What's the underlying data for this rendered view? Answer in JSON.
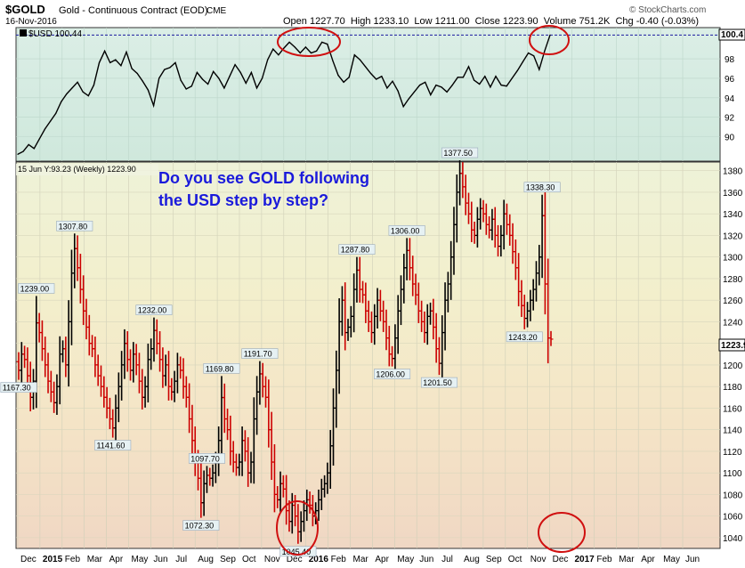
{
  "header": {
    "symbol": "$GOLD",
    "name": "Gold - Continuous Contract (EOD)",
    "exchange": "CME",
    "date": "16-Nov-2016",
    "ohlc_line": "Open 1227.70  High 1233.10  Low 1211.00  Close 1223.90  Volume 751.2K  Chg -0.40 (-0.03%)",
    "watermark": "© StockCharts.com"
  },
  "annotation": {
    "line1": "Do you see GOLD following",
    "line2": "the USD step by step?"
  },
  "colors": {
    "up_bar": "#000000",
    "down_bar": "#cc0000",
    "usd_line": "#000000",
    "annotation_text": "#1a1adb",
    "circle": "#d01010",
    "dashed_line": "#1a1aa0"
  },
  "chart_data": [
    {
      "type": "line",
      "legend": "$USD 100.44",
      "last_value_tag": "100.4",
      "ylim": [
        87.5,
        101.2
      ],
      "yticks": [
        90,
        92,
        94,
        96,
        98
      ],
      "reference_line": 100.44,
      "x": [
        0,
        1,
        2,
        3,
        4,
        5,
        6,
        7,
        8,
        9,
        10,
        11,
        12,
        13,
        14,
        15,
        16,
        17,
        18,
        19,
        20,
        21,
        22,
        23,
        24,
        25,
        26,
        27,
        28,
        29,
        30,
        31,
        32,
        33,
        34,
        35,
        36,
        37,
        38,
        39,
        40,
        41,
        42,
        43,
        44,
        45,
        46,
        47,
        48,
        49,
        50,
        51,
        52,
        53,
        54,
        55,
        56,
        57,
        58,
        59,
        60,
        61,
        62,
        63,
        64,
        65,
        66,
        67,
        68,
        69,
        70,
        71,
        72,
        73,
        74,
        75,
        76,
        77,
        78,
        79,
        80,
        81,
        82,
        83,
        84,
        85,
        86,
        87,
        88,
        89,
        90,
        91,
        92,
        93,
        94,
        95,
        96,
        97,
        98
      ],
      "values": [
        88.2,
        88.5,
        89.2,
        88.8,
        89.8,
        90.8,
        91.6,
        92.4,
        93.6,
        94.4,
        95.0,
        95.6,
        94.6,
        94.2,
        95.3,
        97.6,
        98.8,
        97.6,
        97.9,
        97.3,
        98.7,
        97.0,
        96.5,
        95.7,
        94.8,
        93.2,
        96.0,
        96.9,
        97.1,
        97.6,
        95.8,
        94.9,
        95.2,
        96.6,
        95.9,
        95.4,
        96.7,
        96.0,
        95.0,
        96.2,
        97.4,
        96.6,
        95.5,
        96.6,
        95.0,
        96.0,
        97.9,
        99.0,
        98.4,
        99.1,
        99.7,
        99.2,
        98.6,
        99.2,
        98.6,
        98.8,
        99.7,
        99.5,
        97.8,
        96.3,
        95.6,
        96.1,
        98.4,
        97.9,
        97.2,
        96.5,
        95.9,
        96.2,
        95.0,
        95.7,
        94.7,
        93.1,
        93.9,
        94.6,
        95.3,
        95.6,
        94.3,
        95.3,
        95.1,
        94.6,
        95.3,
        96.1,
        96.1,
        97.2,
        95.8,
        95.4,
        96.2,
        95.1,
        96.2,
        95.3,
        95.2,
        96.0,
        96.8,
        97.7,
        98.6,
        98.3,
        96.9,
        98.8,
        100.44
      ],
      "circled": [
        "Mar 2016 peak",
        "Nov 2016 current"
      ]
    },
    {
      "type": "bar",
      "style": "ohlc",
      "legend": "15 Jun Y:93.23  (Weekly) 1223.90",
      "last_value_tag": "1223.9",
      "ylim": [
        1030,
        1388
      ],
      "yticks": [
        1040,
        1060,
        1080,
        1100,
        1120,
        1140,
        1160,
        1180,
        1200,
        1220,
        1240,
        1260,
        1280,
        1300,
        1320,
        1340,
        1360,
        1380
      ],
      "xtick_labels": [
        "Dec",
        "2015",
        "Feb",
        "Mar",
        "Apr",
        "May",
        "Jun",
        "Jul",
        "Aug",
        "Sep",
        "Oct",
        "Nov",
        "Dec",
        "2016",
        "Feb",
        "Mar",
        "Apr",
        "May",
        "Jun",
        "Jul",
        "Aug",
        "Sep",
        "Oct",
        "Nov",
        "Dec",
        "2017",
        "Feb",
        "Mar",
        "Apr",
        "May",
        "Jun"
      ],
      "closes": [
        1195,
        1210,
        1205,
        1190,
        1170,
        1185,
        1239,
        1230,
        1215,
        1200,
        1185,
        1175,
        1165,
        1180,
        1210,
        1215,
        1200,
        1240,
        1285,
        1307.8,
        1290,
        1270,
        1250,
        1235,
        1220,
        1215,
        1200,
        1190,
        1180,
        1170,
        1160,
        1150,
        1141.6,
        1160,
        1180,
        1200,
        1220,
        1205,
        1195,
        1210,
        1200,
        1185,
        1170,
        1180,
        1205,
        1215,
        1232,
        1220,
        1205,
        1190,
        1200,
        1180,
        1175,
        1185,
        1200,
        1195,
        1180,
        1170,
        1150,
        1130,
        1110,
        1095,
        1072.3,
        1090,
        1097.7,
        1095,
        1100,
        1110,
        1130,
        1169.8,
        1150,
        1140,
        1120,
        1110,
        1105,
        1110,
        1130,
        1120,
        1100,
        1110,
        1150,
        1175,
        1191.7,
        1180,
        1170,
        1140,
        1110,
        1080,
        1075,
        1090,
        1085,
        1065,
        1055,
        1070,
        1060,
        1045.4,
        1055,
        1065,
        1075,
        1070,
        1060,
        1065,
        1075,
        1085,
        1090,
        1100,
        1125,
        1160,
        1195,
        1240,
        1260,
        1230,
        1235,
        1245,
        1270,
        1287.8,
        1270,
        1265,
        1250,
        1240,
        1230,
        1245,
        1260,
        1250,
        1240,
        1225,
        1210,
        1206,
        1225,
        1250,
        1270,
        1290,
        1306,
        1290,
        1275,
        1265,
        1250,
        1240,
        1230,
        1245,
        1250,
        1235,
        1215,
        1201.5,
        1230,
        1260,
        1275,
        1300,
        1330,
        1360,
        1377.5,
        1365,
        1350,
        1340,
        1325,
        1320,
        1335,
        1345,
        1340,
        1330,
        1325,
        1335,
        1320,
        1310,
        1320,
        1340,
        1330,
        1320,
        1305,
        1290,
        1268,
        1255,
        1243.2,
        1250,
        1260,
        1270,
        1285,
        1300,
        1338.3,
        1275,
        1225,
        1223.9
      ],
      "price_labels": [
        {
          "text": "1239.00",
          "value": 1239.0
        },
        {
          "text": "1167.30",
          "value": 1167.3
        },
        {
          "text": "1307.80",
          "value": 1307.8
        },
        {
          "text": "1141.60",
          "value": 1141.6
        },
        {
          "text": "1232.00",
          "value": 1232.0
        },
        {
          "text": "1072.30",
          "value": 1072.3
        },
        {
          "text": "1169.80",
          "value": 1169.8
        },
        {
          "text": "1097.70",
          "value": 1097.7
        },
        {
          "text": "1191.70",
          "value": 1191.7
        },
        {
          "text": "1045.40",
          "value": 1045.4
        },
        {
          "text": "1287.80",
          "value": 1287.8
        },
        {
          "text": "1206.00",
          "value": 1206.0
        },
        {
          "text": "1306.00",
          "value": 1306.0
        },
        {
          "text": "1201.50",
          "value": 1201.5
        },
        {
          "text": "1377.50",
          "value": 1377.5
        },
        {
          "text": "1338.30",
          "value": 1338.3
        },
        {
          "text": "1243.20",
          "value": 1243.2
        }
      ],
      "circled": [
        "Dec 2015 low",
        "Dec 2016 projection"
      ]
    }
  ]
}
